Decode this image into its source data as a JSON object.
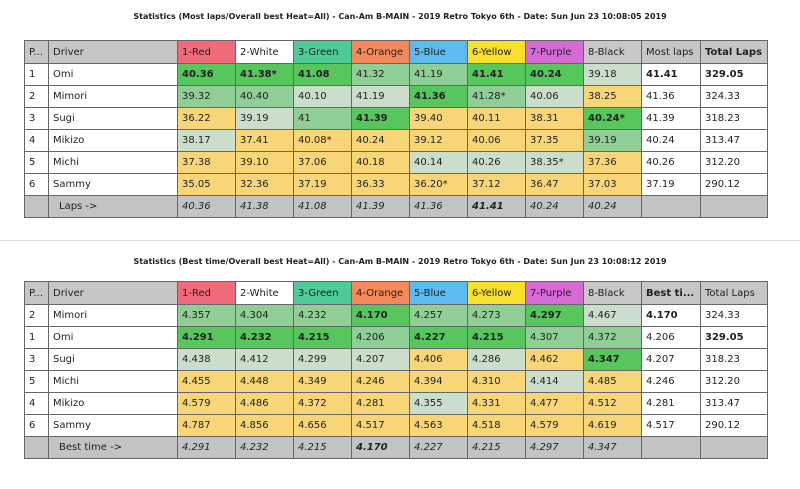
{
  "colors": {
    "g": "#57c65c",
    "m": "#8fcf96",
    "l": "#cbdecb",
    "y": "#f8d677"
  },
  "lanes": [
    {
      "label": "1-Red",
      "color": "#f06a7a"
    },
    {
      "label": "2-White",
      "color": "#ffffff"
    },
    {
      "label": "3-Green",
      "color": "#4fcb9a"
    },
    {
      "label": "4-Orange",
      "color": "#f6895a"
    },
    {
      "label": "5-Blue",
      "color": "#5dbcef"
    },
    {
      "label": "6-Yellow",
      "color": "#f9e02a"
    },
    {
      "label": "7-Purple",
      "color": "#d86ad8"
    },
    {
      "label": "8-Black",
      "color": "#c8c8c8"
    }
  ],
  "tables": [
    {
      "title": "Statistics (Most laps/Overall best Heat=All) - Can-Am B-MAIN - 2019 Retro Tokyo 6th - Date: Sun Jun 23 10:08:05 2019",
      "headers": {
        "pos": "P...",
        "driver": "Driver",
        "extra": "Most laps",
        "total": "Total Laps"
      },
      "extra_bold": false,
      "total_bold": true,
      "rows": [
        {
          "pos": "1",
          "driver": "Omi",
          "cells": [
            [
              "40.36",
              "g",
              1
            ],
            [
              "41.38*",
              "g",
              1
            ],
            [
              "41.08",
              "g",
              1
            ],
            [
              "41.32",
              "m",
              0
            ],
            [
              "41.19",
              "m",
              0
            ],
            [
              "41.41",
              "g",
              1
            ],
            [
              "40.24",
              "g",
              1
            ],
            [
              "39.18",
              "l",
              0
            ]
          ],
          "extra": "41.41",
          "extra_b": 1,
          "total": "329.05",
          "total_b": 1
        },
        {
          "pos": "2",
          "driver": "Mimori",
          "cells": [
            [
              "39.32",
              "m",
              0
            ],
            [
              "40.40",
              "m",
              0
            ],
            [
              "40.10",
              "l",
              0
            ],
            [
              "41.19",
              "l",
              0
            ],
            [
              "41.36",
              "g",
              1
            ],
            [
              "41.28*",
              "m",
              0
            ],
            [
              "40.06",
              "l",
              0
            ],
            [
              "38.25",
              "y",
              0
            ]
          ],
          "extra": "41.36",
          "extra_b": 0,
          "total": "324.33",
          "total_b": 0
        },
        {
          "pos": "3",
          "driver": "Sugi",
          "cells": [
            [
              "36.22",
              "y",
              0
            ],
            [
              "39.19",
              "l",
              0
            ],
            [
              "41",
              "m",
              0
            ],
            [
              "41.39",
              "g",
              1
            ],
            [
              "39.40",
              "y",
              0
            ],
            [
              "40.11",
              "y",
              0
            ],
            [
              "38.31",
              "y",
              0
            ],
            [
              "40.24*",
              "g",
              1
            ]
          ],
          "extra": "41.39",
          "extra_b": 0,
          "total": "318.23",
          "total_b": 0
        },
        {
          "pos": "4",
          "driver": "Mikizo",
          "cells": [
            [
              "38.17",
              "l",
              0
            ],
            [
              "37.41",
              "y",
              0
            ],
            [
              "40.08*",
              "y",
              0
            ],
            [
              "40.24",
              "y",
              0
            ],
            [
              "39.12",
              "y",
              0
            ],
            [
              "40.06",
              "y",
              0
            ],
            [
              "37.35",
              "y",
              0
            ],
            [
              "39.19",
              "m",
              0
            ]
          ],
          "extra": "40.24",
          "extra_b": 0,
          "total": "313.47",
          "total_b": 0
        },
        {
          "pos": "5",
          "driver": "Michi",
          "cells": [
            [
              "37.38",
              "y",
              0
            ],
            [
              "39.10",
              "y",
              0
            ],
            [
              "37.06",
              "y",
              0
            ],
            [
              "40.18",
              "y",
              0
            ],
            [
              "40.14",
              "l",
              0
            ],
            [
              "40.26",
              "l",
              0
            ],
            [
              "38.35*",
              "l",
              0
            ],
            [
              "37.36",
              "y",
              0
            ]
          ],
          "extra": "40.26",
          "extra_b": 0,
          "total": "312.20",
          "total_b": 0
        },
        {
          "pos": "6",
          "driver": "Sammy",
          "cells": [
            [
              "35.05",
              "y",
              0
            ],
            [
              "32.36",
              "y",
              0
            ],
            [
              "37.19",
              "y",
              0
            ],
            [
              "36.33",
              "y",
              0
            ],
            [
              "36.20*",
              "y",
              0
            ],
            [
              "37.12",
              "y",
              0
            ],
            [
              "36.47",
              "y",
              0
            ],
            [
              "37.03",
              "y",
              0
            ]
          ],
          "extra": "37.19",
          "extra_b": 0,
          "total": "290.12",
          "total_b": 0
        }
      ],
      "footer": {
        "label": "Laps ->",
        "values": [
          [
            "40.36",
            0
          ],
          [
            "41.38",
            0
          ],
          [
            "41.08",
            0
          ],
          [
            "41.39",
            0
          ],
          [
            "41.36",
            0
          ],
          [
            "41.41",
            1
          ],
          [
            "40.24",
            0
          ],
          [
            "40.24",
            0
          ]
        ]
      }
    },
    {
      "title": "Statistics (Best time/Overall best Heat=All) - Can-Am B-MAIN - 2019 Retro Tokyo 6th - Date: Sun Jun 23 10:08:12 2019",
      "headers": {
        "pos": "P...",
        "driver": "Driver",
        "extra": "Best ti...",
        "total": "Total Laps"
      },
      "extra_bold": true,
      "total_bold": false,
      "rows": [
        {
          "pos": "2",
          "driver": "Mimori",
          "cells": [
            [
              "4.357",
              "m",
              0
            ],
            [
              "4.304",
              "m",
              0
            ],
            [
              "4.232",
              "m",
              0
            ],
            [
              "4.170",
              "g",
              1
            ],
            [
              "4.257",
              "m",
              0
            ],
            [
              "4.273",
              "m",
              0
            ],
            [
              "4.297",
              "g",
              1
            ],
            [
              "4.467",
              "l",
              0
            ]
          ],
          "extra": "4.170",
          "extra_b": 1,
          "total": "324.33",
          "total_b": 0
        },
        {
          "pos": "1",
          "driver": "Omi",
          "cells": [
            [
              "4.291",
              "g",
              1
            ],
            [
              "4.232",
              "g",
              1
            ],
            [
              "4.215",
              "g",
              1
            ],
            [
              "4.206",
              "m",
              0
            ],
            [
              "4.227",
              "g",
              1
            ],
            [
              "4.215",
              "g",
              1
            ],
            [
              "4.307",
              "m",
              0
            ],
            [
              "4.372",
              "m",
              0
            ]
          ],
          "extra": "4.206",
          "extra_b": 0,
          "total": "329.05",
          "total_b": 1
        },
        {
          "pos": "3",
          "driver": "Sugi",
          "cells": [
            [
              "4.438",
              "l",
              0
            ],
            [
              "4.412",
              "l",
              0
            ],
            [
              "4.299",
              "l",
              0
            ],
            [
              "4.207",
              "l",
              0
            ],
            [
              "4.406",
              "y",
              0
            ],
            [
              "4.286",
              "l",
              0
            ],
            [
              "4.462",
              "y",
              0
            ],
            [
              "4.347",
              "g",
              1
            ]
          ],
          "extra": "4.207",
          "extra_b": 0,
          "total": "318.23",
          "total_b": 0
        },
        {
          "pos": "5",
          "driver": "Michi",
          "cells": [
            [
              "4.455",
              "y",
              0
            ],
            [
              "4.448",
              "y",
              0
            ],
            [
              "4.349",
              "y",
              0
            ],
            [
              "4.246",
              "y",
              0
            ],
            [
              "4.394",
              "y",
              0
            ],
            [
              "4.310",
              "y",
              0
            ],
            [
              "4.414",
              "l",
              0
            ],
            [
              "4.485",
              "y",
              0
            ]
          ],
          "extra": "4.246",
          "extra_b": 0,
          "total": "312.20",
          "total_b": 0
        },
        {
          "pos": "4",
          "driver": "Mikizo",
          "cells": [
            [
              "4.579",
              "y",
              0
            ],
            [
              "4.486",
              "y",
              0
            ],
            [
              "4.372",
              "y",
              0
            ],
            [
              "4.281",
              "y",
              0
            ],
            [
              "4.355",
              "l",
              0
            ],
            [
              "4.331",
              "y",
              0
            ],
            [
              "4.477",
              "y",
              0
            ],
            [
              "4.512",
              "y",
              0
            ]
          ],
          "extra": "4.281",
          "extra_b": 0,
          "total": "313.47",
          "total_b": 0
        },
        {
          "pos": "6",
          "driver": "Sammy",
          "cells": [
            [
              "4.787",
              "y",
              0
            ],
            [
              "4.856",
              "y",
              0
            ],
            [
              "4.656",
              "y",
              0
            ],
            [
              "4.517",
              "y",
              0
            ],
            [
              "4.563",
              "y",
              0
            ],
            [
              "4.518",
              "y",
              0
            ],
            [
              "4.579",
              "y",
              0
            ],
            [
              "4.619",
              "y",
              0
            ]
          ],
          "extra": "4.517",
          "extra_b": 0,
          "total": "290.12",
          "total_b": 0
        }
      ],
      "footer": {
        "label": "Best time ->",
        "values": [
          [
            "4.291",
            0
          ],
          [
            "4.232",
            0
          ],
          [
            "4.215",
            0
          ],
          [
            "4.170",
            1
          ],
          [
            "4.227",
            0
          ],
          [
            "4.215",
            0
          ],
          [
            "4.297",
            0
          ],
          [
            "4.347",
            0
          ]
        ]
      }
    }
  ]
}
